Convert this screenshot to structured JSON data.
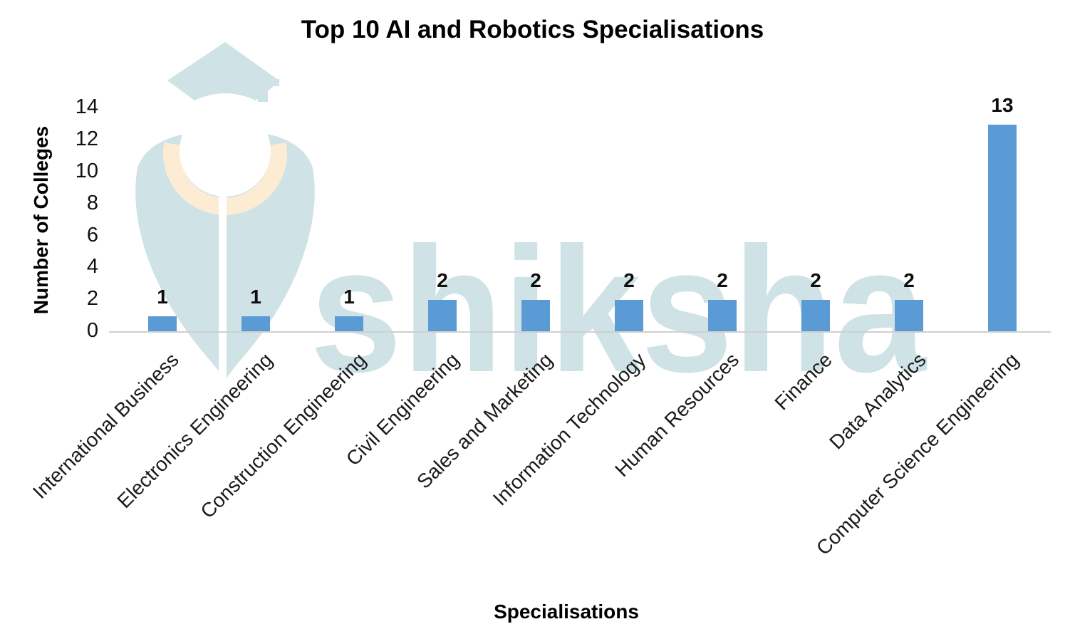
{
  "chart_data": {
    "type": "bar",
    "title": "Top 10 AI and Robotics Specialisations",
    "xlabel": "Specialisations",
    "ylabel": "Number of Colleges",
    "categories": [
      "International Business",
      "Electronics Engineering",
      "Construction Engineering",
      "Civil Engineering",
      "Sales and Marketing",
      "Information Technology",
      "Human Resources",
      "Finance",
      "Data Analytics",
      "Computer Science Engineering"
    ],
    "values": [
      1,
      1,
      1,
      2,
      2,
      2,
      2,
      2,
      2,
      13
    ],
    "data_labels": [
      "1",
      "1",
      "1",
      "2",
      "2",
      "2",
      "2",
      "2",
      "2",
      "13"
    ],
    "yticks": [
      0,
      2,
      4,
      6,
      8,
      10,
      12,
      14
    ],
    "ylim": [
      0,
      14
    ],
    "grid": false,
    "legend_position": "none",
    "bar_color": "#5B9BD5",
    "axis_line_color": "#cfcfcf"
  },
  "watermark": {
    "text": "shiksha",
    "logo": "graduation-cap-pen-nib",
    "teal_color": "#cfe2e6",
    "peach_color": "#fcecd3"
  }
}
